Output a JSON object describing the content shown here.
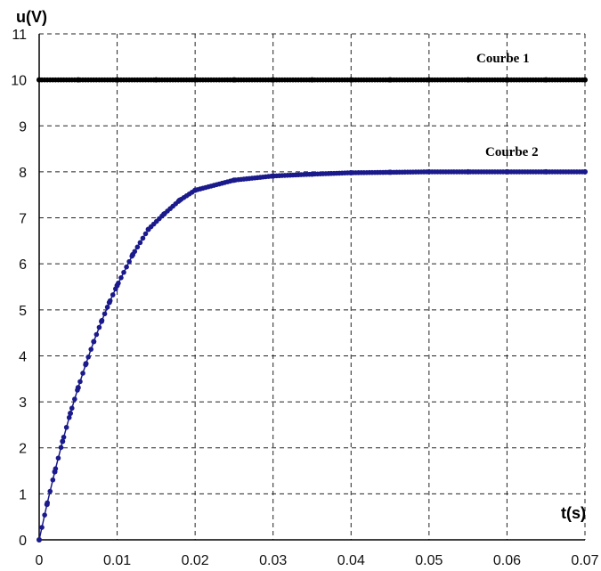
{
  "chart_data": {
    "type": "scatter",
    "title": "",
    "xlabel": "t(s)",
    "ylabel": "u(V)",
    "xlim": [
      0,
      0.07
    ],
    "ylim": [
      0,
      11
    ],
    "xticks": [
      "0",
      "0.01",
      "0.02",
      "0.03",
      "0.04",
      "0.05",
      "0.06",
      "0.07"
    ],
    "yticks": [
      "0",
      "1",
      "2",
      "3",
      "4",
      "5",
      "6",
      "7",
      "8",
      "9",
      "10",
      "11"
    ],
    "grid": true,
    "series": [
      {
        "name": "Courbe 1",
        "color": "#000000",
        "x": [
          0,
          0.005,
          0.01,
          0.015,
          0.02,
          0.025,
          0.03,
          0.035,
          0.04,
          0.045,
          0.05,
          0.055,
          0.06,
          0.065,
          0.07
        ],
        "y": [
          10,
          10,
          10,
          10,
          10,
          10,
          10,
          10,
          10,
          10,
          10,
          10,
          10,
          10,
          10
        ]
      },
      {
        "name": "Courbe 2",
        "color": "#1a1a8c",
        "x": [
          0,
          0.001,
          0.002,
          0.003,
          0.004,
          0.005,
          0.006,
          0.007,
          0.008,
          0.009,
          0.01,
          0.012,
          0.014,
          0.016,
          0.018,
          0.02,
          0.025,
          0.03,
          0.035,
          0.04,
          0.045,
          0.05,
          0.055,
          0.06,
          0.065,
          0.07
        ],
        "y": [
          0,
          0.77,
          1.48,
          2.14,
          2.75,
          3.31,
          3.83,
          4.31,
          4.75,
          5.16,
          5.53,
          6.2,
          6.75,
          7.08,
          7.38,
          7.6,
          7.82,
          7.91,
          7.95,
          7.98,
          7.99,
          8.0,
          8.0,
          8.0,
          8.0,
          8.0
        ]
      }
    ]
  }
}
